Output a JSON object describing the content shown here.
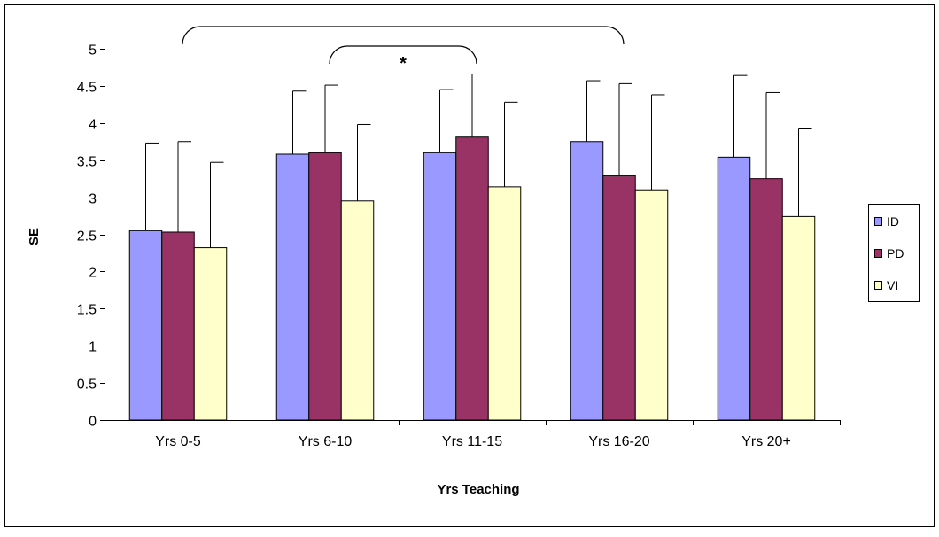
{
  "chart_data": {
    "type": "bar",
    "title": "",
    "xlabel": "Yrs Teaching",
    "ylabel": "SE",
    "categories": [
      "Yrs 0-5",
      "Yrs 6-10",
      "Yrs 11-15",
      "Yrs 16-20",
      "Yrs 20+"
    ],
    "ylim": [
      0,
      5
    ],
    "yticks": [
      0,
      0.5,
      1,
      1.5,
      2,
      2.5,
      3,
      3.5,
      4,
      4.5,
      5
    ],
    "ytick_labels": [
      "0",
      "0.5",
      "1",
      "1.5",
      "2",
      "2.5",
      "3",
      "3.5",
      "4",
      "4.5",
      "5"
    ],
    "grid": false,
    "legend_position": "right",
    "series": [
      {
        "name": "ID",
        "color": "#9999ff",
        "values": [
          2.55,
          3.58,
          3.6,
          3.75,
          3.54
        ],
        "error_upper": [
          1.18,
          0.85,
          0.85,
          0.82,
          1.1
        ]
      },
      {
        "name": "PD",
        "color": "#993366",
        "values": [
          2.53,
          3.6,
          3.81,
          3.29,
          3.25
        ],
        "error_upper": [
          1.22,
          0.91,
          0.85,
          1.24,
          1.16
        ]
      },
      {
        "name": "VI",
        "color": "#ffffcc",
        "values": [
          2.32,
          2.95,
          3.14,
          3.1,
          2.74
        ],
        "error_upper": [
          1.15,
          1.03,
          1.14,
          1.28,
          1.18
        ]
      }
    ],
    "annotations": [
      {
        "text": "*",
        "type": "significance-brackets",
        "brackets": [
          [
            "Yrs 0-5",
            "Yrs 16-20"
          ],
          [
            "Yrs 6-10",
            "Yrs 11-15"
          ]
        ]
      }
    ]
  }
}
